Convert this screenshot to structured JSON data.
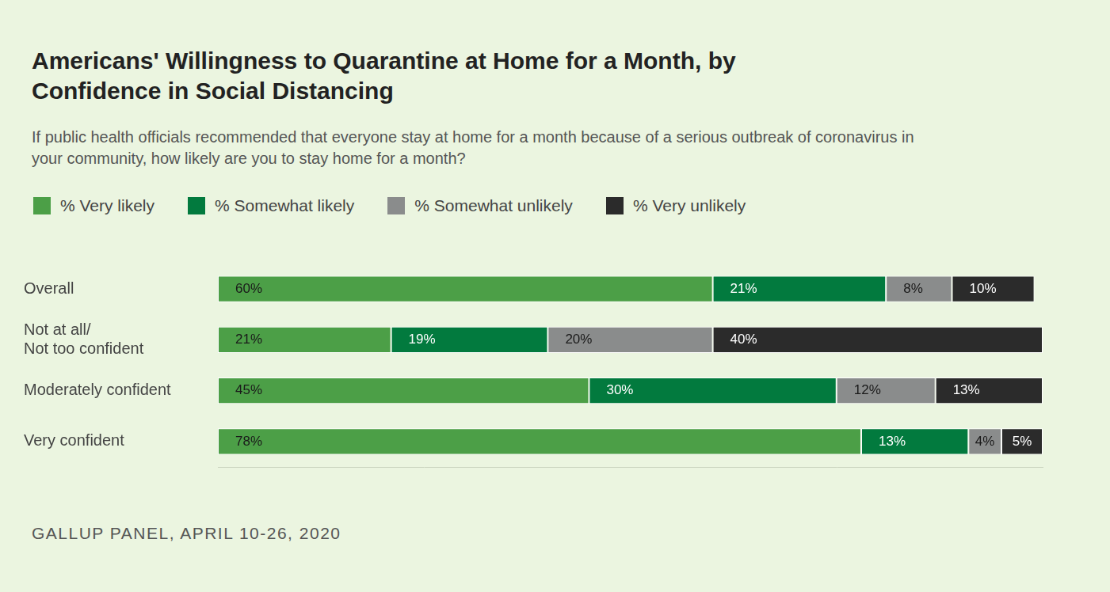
{
  "chart_data": {
    "type": "bar",
    "orientation": "horizontal",
    "stacked": true,
    "title": "Americans' Willingness to Quarantine at Home for a Month, by Confidence in Social Distancing",
    "subtitle": "If public health officials recommended that everyone stay at home for a month because of a serious outbreak of coronavirus in your community, how likely are you to stay home for a month?",
    "source": "GALLUP PANEL, APRIL 10-26, 2020",
    "categories": [
      "Overall",
      "Not at all/\nNot too confident",
      "Moderately confident",
      "Very confident"
    ],
    "series": [
      {
        "name": "% Very likely",
        "color": "#4c9f47",
        "values": [
          60,
          21,
          45,
          78
        ],
        "value_labels": [
          "60%",
          "21%",
          "45%",
          "78%"
        ]
      },
      {
        "name": "% Somewhat likely",
        "color": "#027a3e",
        "values": [
          21,
          19,
          30,
          13
        ],
        "value_labels": [
          "21%",
          "19%",
          "30%",
          "13%"
        ]
      },
      {
        "name": "% Somewhat unlikely",
        "color": "#8a8c8c",
        "values": [
          8,
          20,
          12,
          4
        ],
        "value_labels": [
          "8%",
          "20%",
          "12%",
          "4%"
        ]
      },
      {
        "name": "% Very unlikely",
        "color": "#2b2b2b",
        "values": [
          10,
          40,
          13,
          5
        ],
        "value_labels": [
          "10%",
          "40%",
          "13%",
          "5%"
        ]
      }
    ],
    "xlim": [
      0,
      100
    ],
    "grid": false,
    "legend": "top",
    "data_labels": true,
    "tick_labels": "y"
  }
}
